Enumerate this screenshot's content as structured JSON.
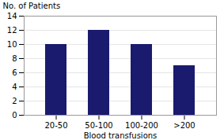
{
  "chart_data": {
    "type": "bar",
    "categories": [
      "20-50",
      "50-100",
      "100-200",
      ">200"
    ],
    "values": [
      10,
      12,
      10,
      7
    ],
    "color": "#1a1a6e",
    "xlabel": "Blood transfusions",
    "ylabel": "No. of Patients",
    "ylim": [
      0,
      14
    ],
    "yticks": [
      0,
      2,
      4,
      6,
      8,
      10,
      12,
      14
    ],
    "grid": true
  }
}
